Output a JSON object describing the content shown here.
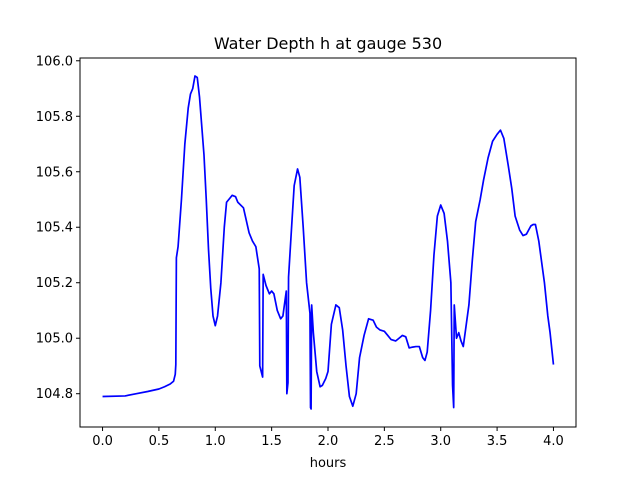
{
  "chart_data": {
    "type": "line",
    "title": "Water Depth h at gauge 530",
    "xlabel": "hours",
    "ylabel": "",
    "xlim": [
      -0.2,
      4.2
    ],
    "ylim": [
      104.68,
      106.01
    ],
    "x_ticks": [
      0.0,
      0.5,
      1.0,
      1.5,
      2.0,
      2.5,
      3.0,
      3.5,
      4.0
    ],
    "x_tick_labels": [
      "0.0",
      "0.5",
      "1.0",
      "1.5",
      "2.0",
      "2.5",
      "3.0",
      "3.5",
      "4.0"
    ],
    "y_ticks": [
      104.8,
      105.0,
      105.2,
      105.4,
      105.6,
      105.8,
      106.0
    ],
    "y_tick_labels": [
      "104.8",
      "105.0",
      "105.2",
      "105.4",
      "105.6",
      "105.8",
      "106.0"
    ],
    "grid": false,
    "series": [
      {
        "color": "#0000ff",
        "points": [
          [
            0.0,
            104.79
          ],
          [
            0.2,
            104.792
          ],
          [
            0.3,
            104.8
          ],
          [
            0.4,
            104.808
          ],
          [
            0.5,
            104.817
          ],
          [
            0.55,
            104.825
          ],
          [
            0.6,
            104.835
          ],
          [
            0.63,
            104.845
          ],
          [
            0.645,
            104.87
          ],
          [
            0.65,
            104.905
          ],
          [
            0.655,
            105.29
          ],
          [
            0.67,
            105.33
          ],
          [
            0.7,
            105.5
          ],
          [
            0.73,
            105.7
          ],
          [
            0.76,
            105.83
          ],
          [
            0.78,
            105.88
          ],
          [
            0.8,
            105.9
          ],
          [
            0.82,
            105.945
          ],
          [
            0.84,
            105.94
          ],
          [
            0.86,
            105.87
          ],
          [
            0.9,
            105.66
          ],
          [
            0.92,
            105.5
          ],
          [
            0.94,
            105.32
          ],
          [
            0.96,
            105.18
          ],
          [
            0.98,
            105.08
          ],
          [
            1.0,
            105.045
          ],
          [
            1.02,
            105.08
          ],
          [
            1.05,
            105.2
          ],
          [
            1.08,
            105.4
          ],
          [
            1.1,
            105.49
          ],
          [
            1.13,
            105.505
          ],
          [
            1.15,
            105.515
          ],
          [
            1.18,
            105.51
          ],
          [
            1.2,
            105.49
          ],
          [
            1.25,
            105.47
          ],
          [
            1.3,
            105.38
          ],
          [
            1.33,
            105.35
          ],
          [
            1.36,
            105.33
          ],
          [
            1.39,
            105.25
          ],
          [
            1.395,
            104.9
          ],
          [
            1.42,
            104.86
          ],
          [
            1.425,
            105.23
          ],
          [
            1.45,
            105.19
          ],
          [
            1.48,
            105.16
          ],
          [
            1.5,
            105.17
          ],
          [
            1.52,
            105.16
          ],
          [
            1.55,
            105.1
          ],
          [
            1.58,
            105.07
          ],
          [
            1.6,
            105.08
          ],
          [
            1.63,
            105.17
          ],
          [
            1.635,
            104.8
          ],
          [
            1.645,
            104.84
          ],
          [
            1.65,
            105.22
          ],
          [
            1.68,
            105.42
          ],
          [
            1.7,
            105.55
          ],
          [
            1.73,
            105.61
          ],
          [
            1.75,
            105.58
          ],
          [
            1.78,
            105.4
          ],
          [
            1.81,
            105.2
          ],
          [
            1.84,
            105.09
          ],
          [
            1.845,
            104.75
          ],
          [
            1.85,
            104.745
          ],
          [
            1.855,
            105.12
          ],
          [
            1.87,
            105.02
          ],
          [
            1.9,
            104.88
          ],
          [
            1.93,
            104.825
          ],
          [
            1.95,
            104.83
          ],
          [
            1.98,
            104.855
          ],
          [
            2.0,
            104.88
          ],
          [
            2.03,
            105.05
          ],
          [
            2.07,
            105.12
          ],
          [
            2.1,
            105.11
          ],
          [
            2.13,
            105.03
          ],
          [
            2.16,
            104.9
          ],
          [
            2.19,
            104.79
          ],
          [
            2.22,
            104.755
          ],
          [
            2.25,
            104.8
          ],
          [
            2.28,
            104.93
          ],
          [
            2.32,
            105.01
          ],
          [
            2.36,
            105.07
          ],
          [
            2.4,
            105.065
          ],
          [
            2.43,
            105.04
          ],
          [
            2.46,
            105.03
          ],
          [
            2.5,
            105.025
          ],
          [
            2.53,
            105.01
          ],
          [
            2.56,
            104.995
          ],
          [
            2.6,
            104.99
          ],
          [
            2.63,
            105.0
          ],
          [
            2.66,
            105.01
          ],
          [
            2.69,
            105.005
          ],
          [
            2.72,
            104.965
          ],
          [
            2.75,
            104.968
          ],
          [
            2.78,
            104.97
          ],
          [
            2.81,
            104.97
          ],
          [
            2.84,
            104.93
          ],
          [
            2.86,
            104.92
          ],
          [
            2.88,
            104.95
          ],
          [
            2.91,
            105.1
          ],
          [
            2.94,
            105.3
          ],
          [
            2.97,
            105.44
          ],
          [
            3.0,
            105.48
          ],
          [
            3.03,
            105.45
          ],
          [
            3.06,
            105.35
          ],
          [
            3.09,
            105.2
          ],
          [
            3.105,
            104.83
          ],
          [
            3.115,
            104.75
          ],
          [
            3.12,
            105.12
          ],
          [
            3.14,
            105.0
          ],
          [
            3.16,
            105.02
          ],
          [
            3.18,
            104.99
          ],
          [
            3.2,
            104.97
          ],
          [
            3.22,
            105.03
          ],
          [
            3.25,
            105.12
          ],
          [
            3.28,
            105.28
          ],
          [
            3.31,
            105.42
          ],
          [
            3.35,
            105.5
          ],
          [
            3.38,
            105.57
          ],
          [
            3.42,
            105.65
          ],
          [
            3.46,
            105.71
          ],
          [
            3.5,
            105.735
          ],
          [
            3.53,
            105.75
          ],
          [
            3.56,
            105.72
          ],
          [
            3.6,
            105.62
          ],
          [
            3.63,
            105.54
          ],
          [
            3.66,
            105.44
          ],
          [
            3.7,
            105.39
          ],
          [
            3.73,
            105.37
          ],
          [
            3.76,
            105.375
          ],
          [
            3.78,
            105.39
          ],
          [
            3.8,
            105.405
          ],
          [
            3.82,
            105.41
          ],
          [
            3.84,
            105.41
          ],
          [
            3.87,
            105.35
          ],
          [
            3.9,
            105.26
          ],
          [
            3.92,
            105.2
          ],
          [
            3.95,
            105.08
          ],
          [
            3.97,
            105.02
          ],
          [
            4.0,
            104.905
          ]
        ]
      }
    ]
  }
}
